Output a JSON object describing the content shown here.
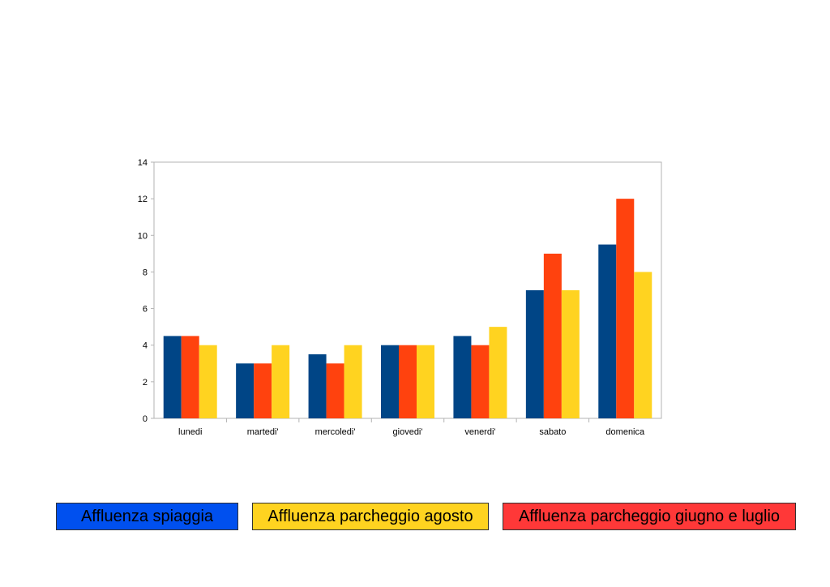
{
  "chart_data": {
    "type": "bar",
    "categories": [
      "lunedi",
      "martedi'",
      "mercoledi'",
      "giovedi'",
      "venerdi'",
      "sabato",
      "domenica"
    ],
    "series": [
      {
        "name": "Affluenza spiaggia",
        "color": "#004586",
        "values": [
          4.5,
          3,
          3.5,
          4,
          4.5,
          7,
          9.5
        ]
      },
      {
        "name": "Affluenza parcheggio giugno e luglio",
        "color": "#ff420e",
        "values": [
          4.5,
          3,
          3,
          4,
          4,
          9,
          12
        ]
      },
      {
        "name": "Affluenza parcheggio agosto",
        "color": "#ffd320",
        "values": [
          4,
          4,
          4,
          4,
          5,
          7,
          8
        ]
      }
    ],
    "ylim": [
      0,
      14
    ],
    "yticks": [
      0,
      2,
      4,
      6,
      8,
      10,
      12,
      14
    ],
    "grid": false,
    "legend_position": "bottom"
  },
  "legend": {
    "items": [
      {
        "label": "Affluenza spiaggia",
        "color": "#0050ef"
      },
      {
        "label": "Affluenza parcheggio agosto",
        "color": "#ffd320"
      },
      {
        "label": "Affluenza parcheggio giugno e luglio",
        "color": "#ff3838"
      }
    ]
  }
}
